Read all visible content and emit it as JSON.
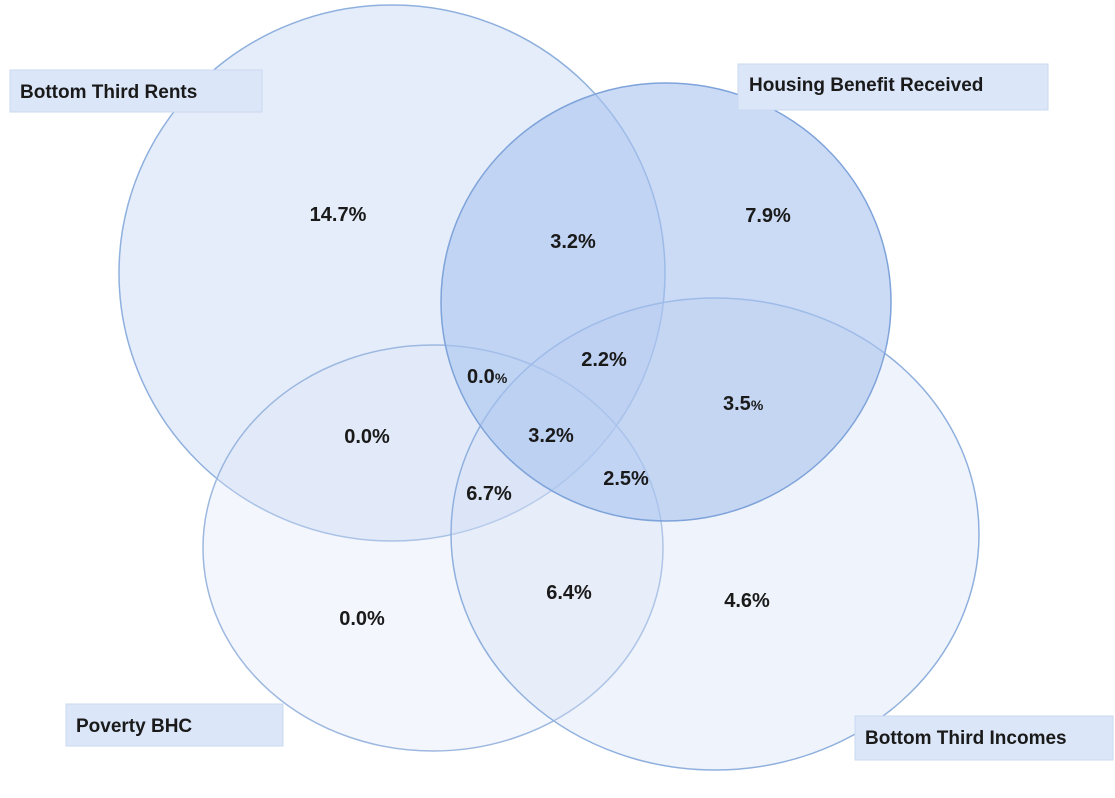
{
  "sets": [
    {
      "id": "bottom-third-rents",
      "label": "Bottom Third Rents",
      "fill": "#c5d7f4",
      "opacity": 0.45,
      "stroke": "#8fb0de"
    },
    {
      "id": "housing-benefit-received",
      "label": "Housing Benefit Received",
      "fill": "#a8c3ef",
      "opacity": 0.6,
      "stroke": "#7ea3da"
    },
    {
      "id": "poverty-bhc",
      "label": "Poverty BHC",
      "fill": "#dde6f6",
      "opacity": 0.35,
      "stroke": "#9db8e0"
    },
    {
      "id": "bottom-third-incomes",
      "label": "Bottom Third Incomes",
      "fill": "#d2def4",
      "opacity": 0.35,
      "stroke": "#8fb0de"
    }
  ],
  "regions": [
    {
      "id": "rents-only",
      "value": "14.7%"
    },
    {
      "id": "rents-hb",
      "value": "3.2%"
    },
    {
      "id": "hb-only",
      "value": "7.9%"
    },
    {
      "id": "rents-hb-poverty",
      "value": "0.0",
      "suffix": "%"
    },
    {
      "id": "rents-hb-incomes",
      "value": "2.2%"
    },
    {
      "id": "hb-incomes",
      "value": "3.5",
      "suffix": "%"
    },
    {
      "id": "rents-poverty",
      "value": "0.0%"
    },
    {
      "id": "all-four",
      "value": "3.2%"
    },
    {
      "id": "hb-poverty-incomes",
      "value": "2.5%"
    },
    {
      "id": "rents-poverty-incomes",
      "value": "6.7%"
    },
    {
      "id": "poverty-only",
      "value": "0.0%"
    },
    {
      "id": "poverty-incomes",
      "value": "6.4%"
    },
    {
      "id": "incomes-only",
      "value": "4.6%"
    }
  ]
}
